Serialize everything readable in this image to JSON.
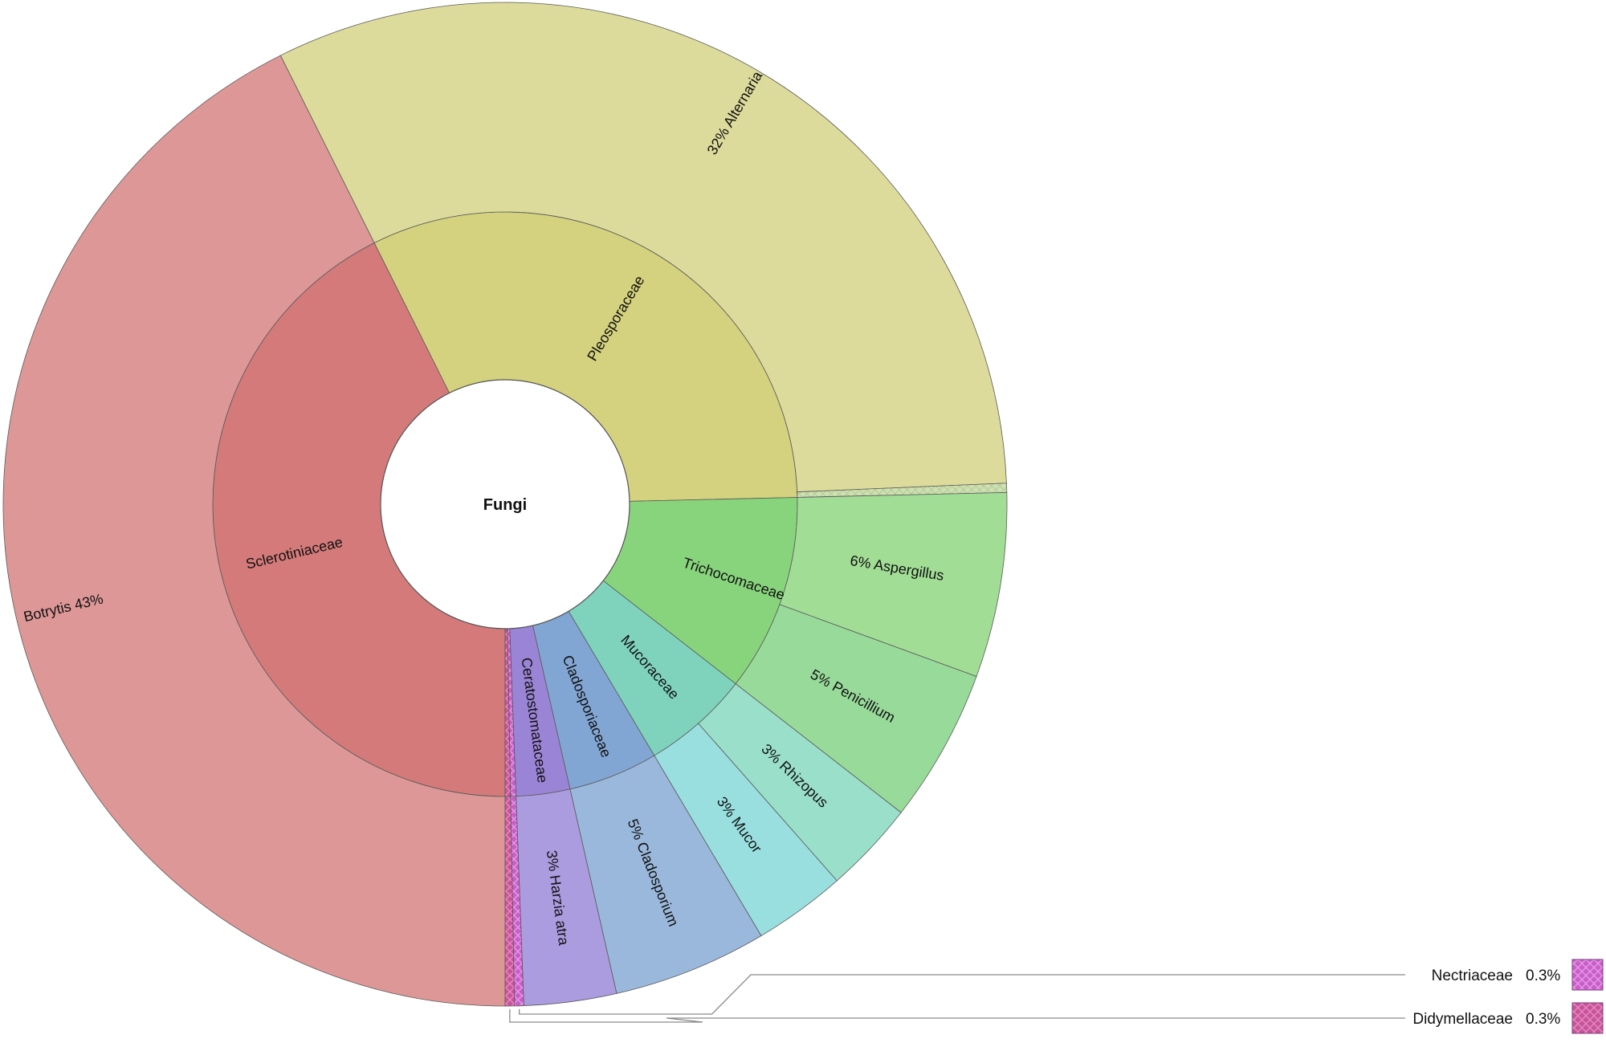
{
  "chart_data": {
    "type": "sunburst",
    "root": {
      "name": "Fungi"
    },
    "inner_ring": [
      {
        "name": "Sclerotiniaceae",
        "value": 43,
        "color": "#d47a7a"
      },
      {
        "name": "Pleosporaceae",
        "value": 32.3,
        "color": "#d4d27e"
      },
      {
        "name": "Trichocomaceae",
        "value": 11,
        "color": "#88d47c"
      },
      {
        "name": "Mucoraceae",
        "value": 6,
        "color": "#7fd3bd"
      },
      {
        "name": "Cladosporiaceae",
        "value": 5,
        "color": "#82a6d4"
      },
      {
        "name": "Ceratostomataceae",
        "value": 3,
        "color": "#9a84d6"
      },
      {
        "name": "Nectriaceae",
        "value": 0.3,
        "color": "#c95dc9"
      },
      {
        "name": "Didymellaceae",
        "value": 0.3,
        "color": "#c9539a"
      }
    ],
    "outer_ring": [
      {
        "name": "Botrytis",
        "percent": "43%",
        "value": 43,
        "parent": "Sclerotiniaceae",
        "color": "#dd9797"
      },
      {
        "name": "Alternaria",
        "percent": "32%",
        "value": 32,
        "parent": "Pleosporaceae",
        "color": "#dcdb9b"
      },
      {
        "name": "",
        "percent": "",
        "value": 0.3,
        "parent": "Pleosporaceae",
        "color": "#cfe0b0"
      },
      {
        "name": "Aspergillus",
        "percent": "6%",
        "value": 6,
        "parent": "Trichocomaceae",
        "color": "#a2dd96"
      },
      {
        "name": "Penicillium",
        "percent": "5%",
        "value": 5,
        "parent": "Trichocomaceae",
        "color": "#98da9a"
      },
      {
        "name": "Rhizopus",
        "percent": "3%",
        "value": 3,
        "parent": "Mucoraceae",
        "color": "#9adfca"
      },
      {
        "name": "Mucor",
        "percent": "3%",
        "value": 3,
        "parent": "Mucoraceae",
        "color": "#9adfdf"
      },
      {
        "name": "Cladosporium",
        "percent": "5%",
        "value": 5,
        "parent": "Cladosporiaceae",
        "color": "#9ab8db"
      },
      {
        "name": "Harzia atra",
        "percent": "3%",
        "value": 3,
        "parent": "Ceratostomataceae",
        "color": "#ab9cdf"
      },
      {
        "name": "",
        "percent": "",
        "value": 0.3,
        "parent": "Nectriaceae",
        "color": "#c95dc9"
      },
      {
        "name": "",
        "percent": "",
        "value": 0.3,
        "parent": "Didymellaceae",
        "color": "#c9539a"
      }
    ],
    "legend": [
      {
        "name": "Nectriaceae",
        "value": "0.3%",
        "color": "#c95dc9"
      },
      {
        "name": "Didymellaceae",
        "value": "0.3%",
        "color": "#c9539a"
      }
    ]
  }
}
